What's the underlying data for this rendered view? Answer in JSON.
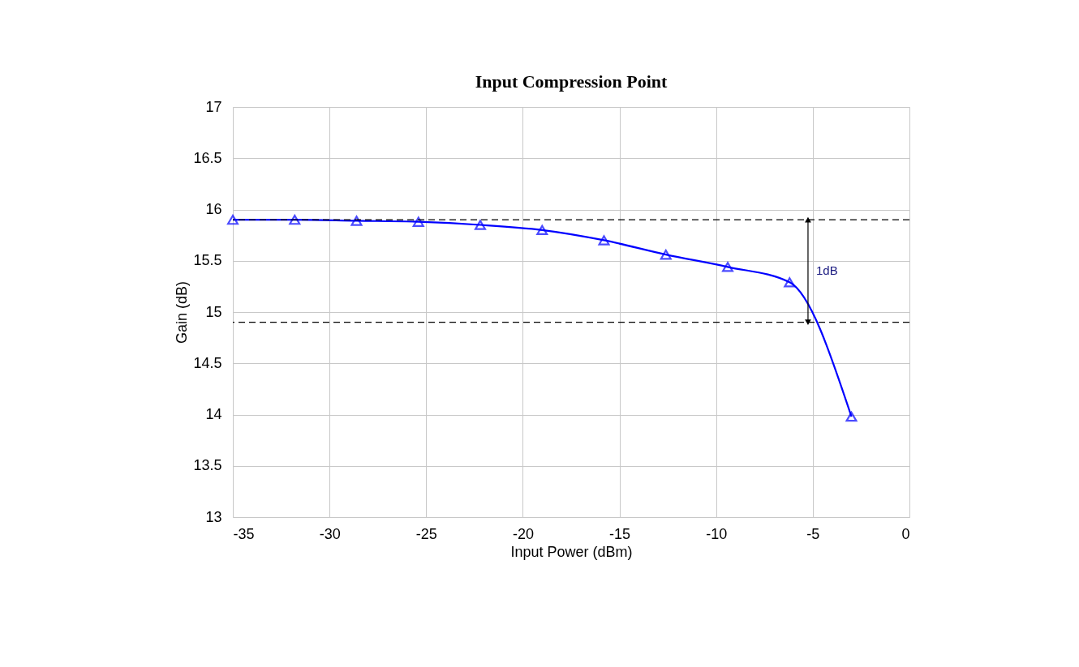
{
  "chart_data": {
    "type": "line",
    "title": "Input Compression Point",
    "xlabel": "Input Power (dBm)",
    "ylabel": "Gain (dB)",
    "x": [
      -35,
      -31.8,
      -28.6,
      -25.4,
      -22.2,
      -19,
      -15.8,
      -12.6,
      -9.4,
      -6.2,
      -3
    ],
    "series": [
      {
        "color": "#0000ff",
        "values": [
          15.9,
          15.9,
          15.89,
          15.88,
          15.85,
          15.8,
          15.7,
          15.56,
          15.44,
          15.29,
          13.98
        ]
      }
    ],
    "xlim": [
      -35,
      0
    ],
    "xticks": [
      -35,
      -30,
      -25,
      -20,
      -15,
      -10,
      -5,
      0
    ],
    "ylim": [
      13,
      17
    ],
    "yticks": [
      13,
      13.5,
      14,
      14.5,
      15,
      15.5,
      16,
      16.5,
      17
    ],
    "ref_lines": [
      {
        "axis": "y",
        "value": 15.9,
        "color": "#000000",
        "line_style": "dashed"
      },
      {
        "axis": "y",
        "value": 14.9,
        "color": "#000000",
        "line_style": "dashed"
      }
    ],
    "annotations": [
      "1dB"
    ],
    "grid": true,
    "marker": "triangle",
    "line_style": "solid"
  }
}
